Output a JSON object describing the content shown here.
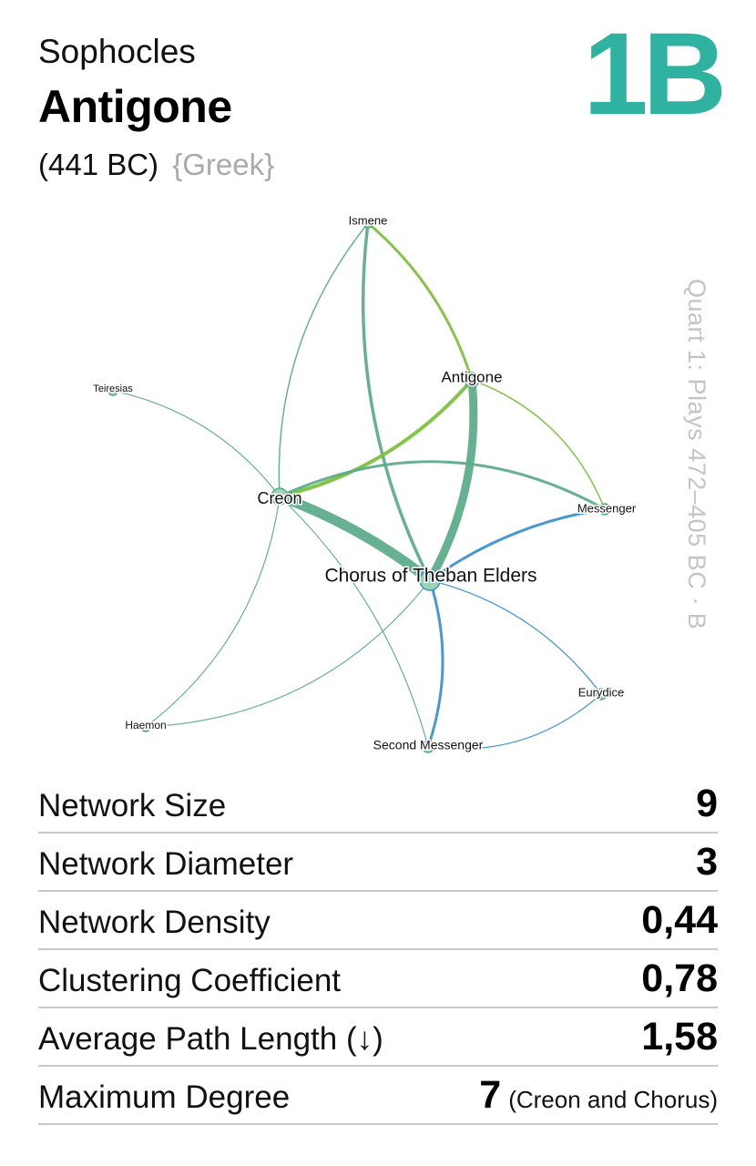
{
  "header": {
    "author": "Sophocles",
    "title": "Antigone",
    "year": "(441 BC)",
    "language": "{Greek}",
    "code": "1B",
    "side_label": "Quart 1: Plays 472–405 BC · B"
  },
  "network": {
    "nodes": [
      {
        "id": "ismene",
        "label": "Ismene"
      },
      {
        "id": "antigone",
        "label": "Antigone"
      },
      {
        "id": "teiresias",
        "label": "Teiresias"
      },
      {
        "id": "creon",
        "label": "Creon"
      },
      {
        "id": "messenger",
        "label": "Messenger"
      },
      {
        "id": "chorus",
        "label": "Chorus of Theban Elders"
      },
      {
        "id": "eurydice",
        "label": "Eurydice"
      },
      {
        "id": "haemon",
        "label": "Haemon"
      },
      {
        "id": "second_messenger",
        "label": "Second Messenger"
      }
    ],
    "edges": [
      {
        "source": "ismene",
        "target": "antigone"
      },
      {
        "source": "ismene",
        "target": "creon"
      },
      {
        "source": "ismene",
        "target": "chorus"
      },
      {
        "source": "antigone",
        "target": "creon"
      },
      {
        "source": "antigone",
        "target": "chorus"
      },
      {
        "source": "antigone",
        "target": "messenger"
      },
      {
        "source": "teiresias",
        "target": "creon"
      },
      {
        "source": "creon",
        "target": "chorus"
      },
      {
        "source": "creon",
        "target": "messenger"
      },
      {
        "source": "creon",
        "target": "haemon"
      },
      {
        "source": "creon",
        "target": "second_messenger"
      },
      {
        "source": "chorus",
        "target": "messenger"
      },
      {
        "source": "chorus",
        "target": "haemon"
      },
      {
        "source": "chorus",
        "target": "eurydice"
      },
      {
        "source": "chorus",
        "target": "second_messenger"
      },
      {
        "source": "eurydice",
        "target": "second_messenger"
      }
    ],
    "colors": {
      "green": "#7cbf3a",
      "teal": "#5aaa8a",
      "blue": "#3a8fcc",
      "node": "#9fd3b8"
    }
  },
  "stats": [
    {
      "label": "Network Size",
      "value": "9",
      "note": ""
    },
    {
      "label": "Network Diameter",
      "value": "3",
      "note": ""
    },
    {
      "label": "Network Density",
      "value": "0,44",
      "note": ""
    },
    {
      "label": "Clustering Coefficient",
      "value": "0,78",
      "note": ""
    },
    {
      "label": "Average Path Length (↓)",
      "value": "1,58",
      "note": ""
    },
    {
      "label": "Maximum Degree",
      "value": "7",
      "note": "(Creon and Chorus)"
    }
  ]
}
